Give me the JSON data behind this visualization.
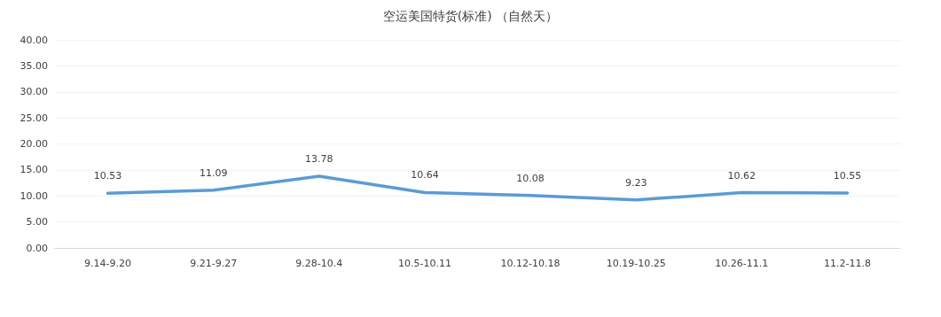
{
  "chart_data": {
    "type": "line",
    "title": "空运美国特货(标准) （自然天）",
    "categories": [
      "9.14-9.20",
      "9.21-9.27",
      "9.28-10.4",
      "10.5-10.11",
      "10.12-10.18",
      "10.19-10.25",
      "10.26-11.1",
      "11.2-11.8"
    ],
    "series": [
      {
        "color": "#5b9bd5",
        "values": [
          10.53,
          11.09,
          13.78,
          10.64,
          10.08,
          9.23,
          10.62,
          10.55
        ]
      }
    ],
    "ylim": [
      0,
      40
    ],
    "yticks": [
      {
        "value": 0,
        "label": "0.00"
      },
      {
        "value": 5,
        "label": "5.00"
      },
      {
        "value": 10,
        "label": "10.00"
      },
      {
        "value": 15,
        "label": "15.00"
      },
      {
        "value": 20,
        "label": "20.00"
      },
      {
        "value": 25,
        "label": "25.00"
      },
      {
        "value": 30,
        "label": "30.00"
      },
      {
        "value": 35,
        "label": "35.00"
      },
      {
        "value": 40,
        "label": "40.00"
      }
    ],
    "grid": "y",
    "data_labels": true,
    "marker": "none",
    "line_style": "solid"
  }
}
